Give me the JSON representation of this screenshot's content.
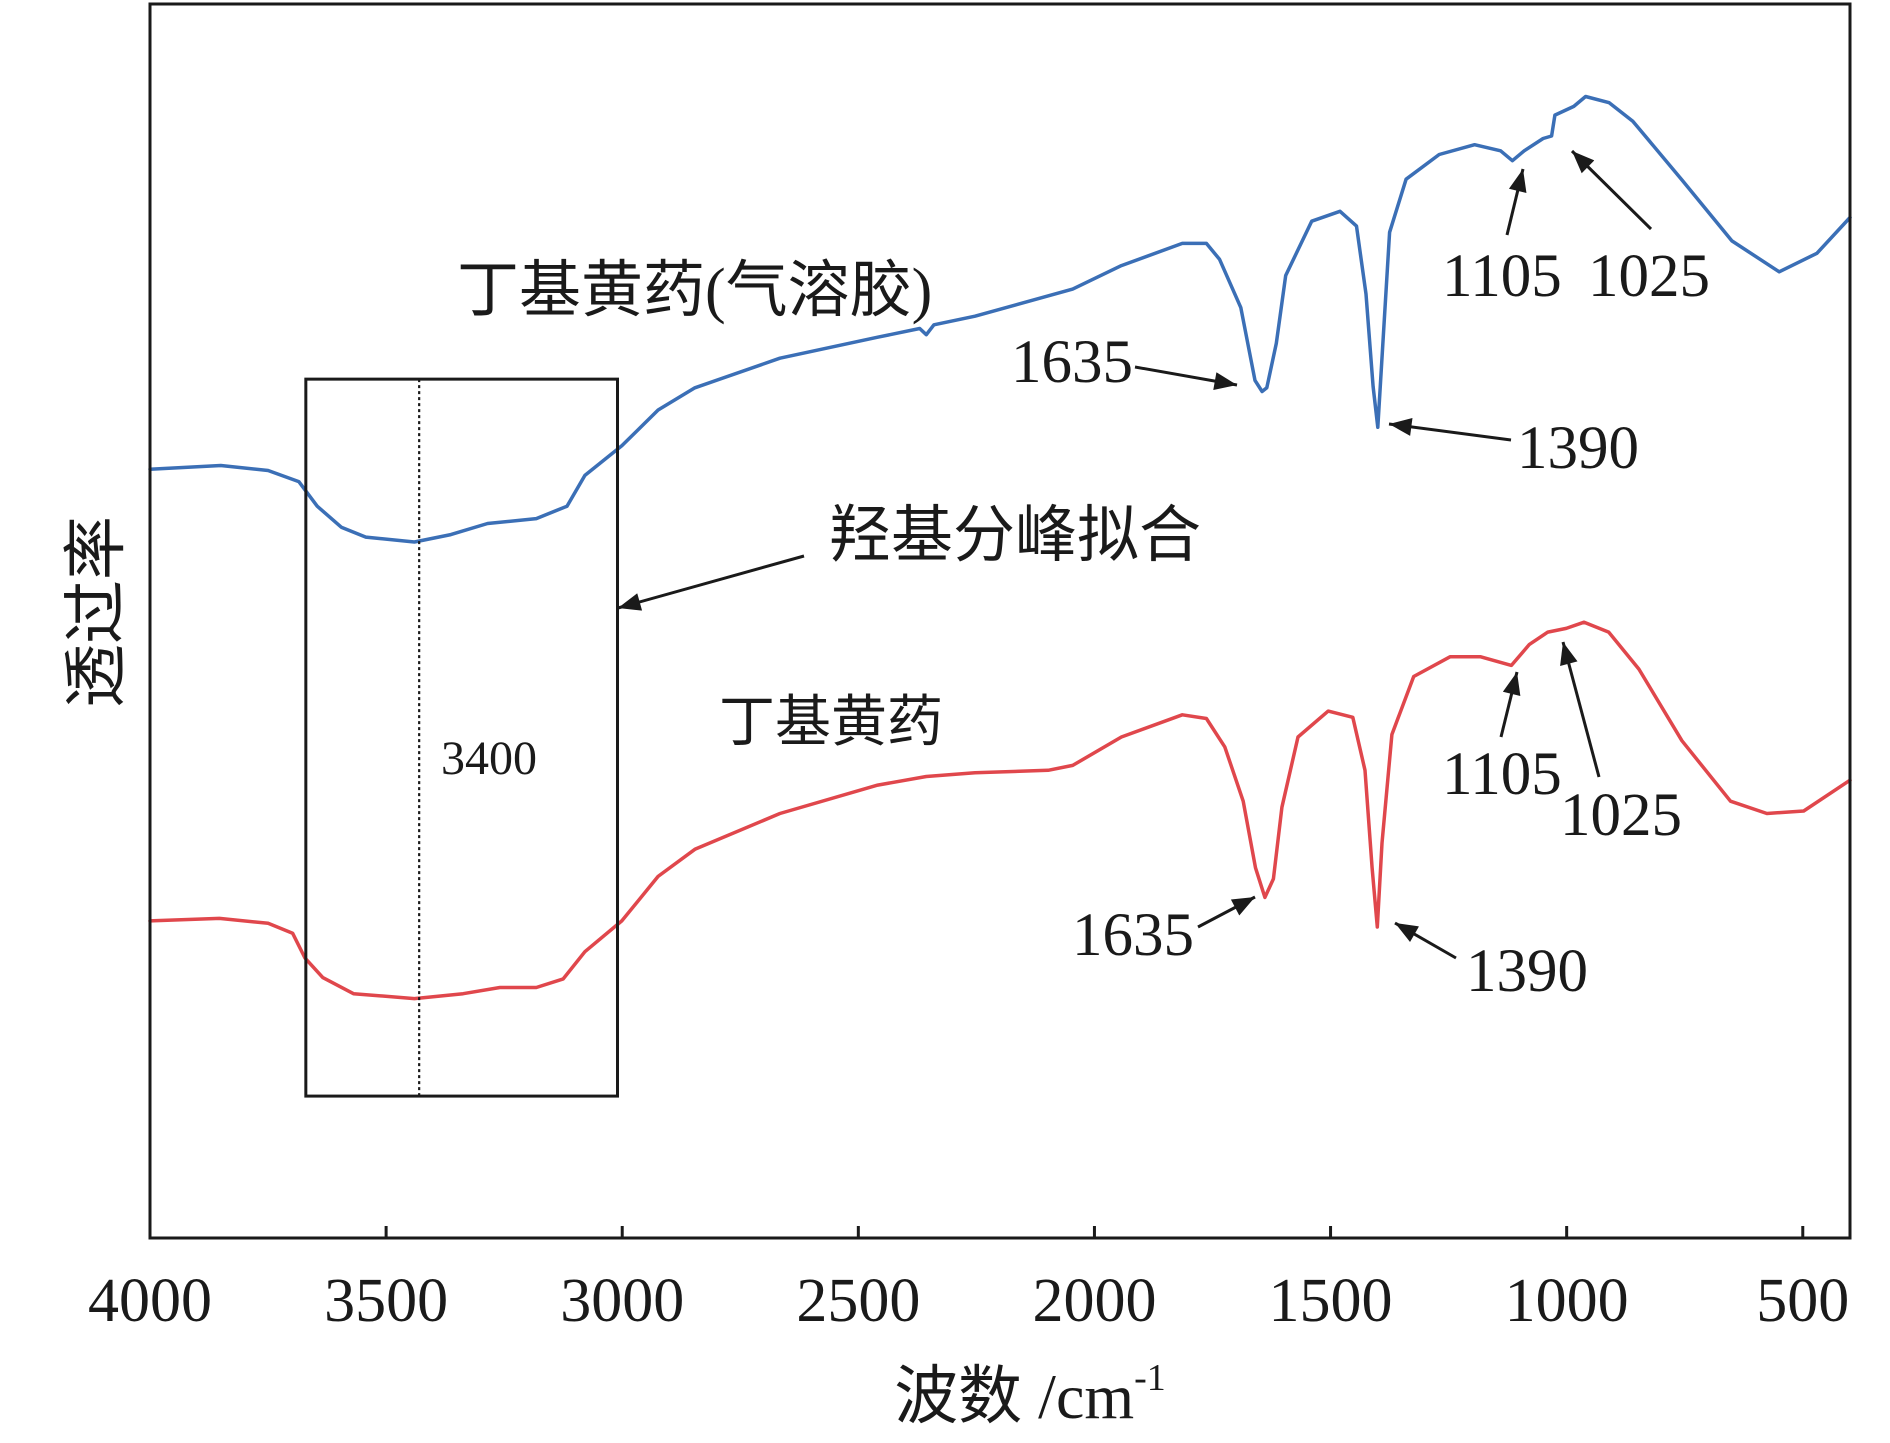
{
  "chart_data": {
    "type": "line",
    "title": "",
    "xlabel": "波数 /cm",
    "xlabel_superscript": "-1",
    "ylabel": "透过率",
    "xlim": [
      4000,
      400
    ],
    "ylim": [
      0,
      100
    ],
    "x_ticks": [
      4000,
      3500,
      3000,
      2500,
      2000,
      1500,
      1000,
      500
    ],
    "grid": false,
    "legend": "none",
    "series": [
      {
        "name": "丁基黄药(气溶胶)",
        "color": "#3b6fb6",
        "peak_labels": [
          "1635",
          "1390",
          "1105",
          "1025"
        ],
        "points": [
          [
            4000,
            62.3
          ],
          [
            3850,
            62.6
          ],
          [
            3750,
            62.2
          ],
          [
            3685,
            61.3
          ],
          [
            3646,
            59.3
          ],
          [
            3595,
            57.6
          ],
          [
            3543,
            56.8
          ],
          [
            3440,
            56.4
          ],
          [
            3363,
            57.0
          ],
          [
            3285,
            57.9
          ],
          [
            3182,
            58.3
          ],
          [
            3117,
            59.3
          ],
          [
            3079,
            61.8
          ],
          [
            3001,
            64.2
          ],
          [
            2924,
            67.1
          ],
          [
            2846,
            68.9
          ],
          [
            2666,
            71.3
          ],
          [
            2459,
            73.0
          ],
          [
            2370,
            73.7
          ],
          [
            2356,
            73.2
          ],
          [
            2340,
            74.0
          ],
          [
            2253,
            74.7
          ],
          [
            2046,
            76.9
          ],
          [
            1943,
            78.8
          ],
          [
            1814,
            80.6
          ],
          [
            1763,
            80.6
          ],
          [
            1735,
            79.3
          ],
          [
            1690,
            75.4
          ],
          [
            1660,
            69.5
          ],
          [
            1645,
            68.6
          ],
          [
            1635,
            68.9
          ],
          [
            1615,
            72.5
          ],
          [
            1595,
            78.0
          ],
          [
            1540,
            82.4
          ],
          [
            1480,
            83.2
          ],
          [
            1445,
            82.0
          ],
          [
            1425,
            76.5
          ],
          [
            1410,
            69.0
          ],
          [
            1400,
            65.7
          ],
          [
            1390,
            72.0
          ],
          [
            1375,
            81.5
          ],
          [
            1340,
            85.8
          ],
          [
            1270,
            87.8
          ],
          [
            1195,
            88.6
          ],
          [
            1140,
            88.1
          ],
          [
            1115,
            87.3
          ],
          [
            1090,
            88.1
          ],
          [
            1050,
            89.1
          ],
          [
            1032,
            89.3
          ],
          [
            1025,
            91.0
          ],
          [
            985,
            91.7
          ],
          [
            960,
            92.5
          ],
          [
            910,
            92.0
          ],
          [
            860,
            90.5
          ],
          [
            755,
            85.7
          ],
          [
            650,
            80.8
          ],
          [
            550,
            78.3
          ],
          [
            470,
            79.8
          ],
          [
            400,
            82.7
          ]
        ]
      },
      {
        "name": "丁基黄药",
        "color": "#e0474c",
        "peak_labels": [
          "1635",
          "1390",
          "1105",
          "1025"
        ],
        "points": [
          [
            4000,
            25.7
          ],
          [
            3853,
            25.9
          ],
          [
            3750,
            25.5
          ],
          [
            3698,
            24.7
          ],
          [
            3672,
            22.7
          ],
          [
            3634,
            21.1
          ],
          [
            3569,
            19.8
          ],
          [
            3440,
            19.4
          ],
          [
            3337,
            19.8
          ],
          [
            3259,
            20.3
          ],
          [
            3182,
            20.3
          ],
          [
            3125,
            21.0
          ],
          [
            3079,
            23.2
          ],
          [
            3001,
            25.7
          ],
          [
            2924,
            29.3
          ],
          [
            2846,
            31.5
          ],
          [
            2666,
            34.4
          ],
          [
            2459,
            36.7
          ],
          [
            2356,
            37.4
          ],
          [
            2253,
            37.7
          ],
          [
            2098,
            37.9
          ],
          [
            2046,
            38.3
          ],
          [
            1943,
            40.6
          ],
          [
            1814,
            42.4
          ],
          [
            1763,
            42.1
          ],
          [
            1724,
            39.8
          ],
          [
            1685,
            35.4
          ],
          [
            1659,
            30.0
          ],
          [
            1639,
            27.6
          ],
          [
            1621,
            29.1
          ],
          [
            1603,
            34.9
          ],
          [
            1569,
            40.6
          ],
          [
            1505,
            42.7
          ],
          [
            1453,
            42.2
          ],
          [
            1427,
            37.9
          ],
          [
            1412,
            30.0
          ],
          [
            1401,
            25.2
          ],
          [
            1391,
            32.0
          ],
          [
            1370,
            40.8
          ],
          [
            1324,
            45.5
          ],
          [
            1247,
            47.1
          ],
          [
            1182,
            47.1
          ],
          [
            1117,
            46.4
          ],
          [
            1079,
            48.1
          ],
          [
            1040,
            49.1
          ],
          [
            1001,
            49.4
          ],
          [
            963,
            49.9
          ],
          [
            911,
            49.1
          ],
          [
            847,
            46.1
          ],
          [
            756,
            40.3
          ],
          [
            653,
            35.4
          ],
          [
            576,
            34.4
          ],
          [
            498,
            34.6
          ],
          [
            400,
            37.1
          ]
        ]
      }
    ],
    "region": {
      "label": "羟基分峰拟合",
      "marker_label": "3400",
      "x_range": [
        3670,
        3010
      ],
      "marker_x": 3430,
      "y_range": [
        11.5,
        69.6
      ]
    }
  }
}
